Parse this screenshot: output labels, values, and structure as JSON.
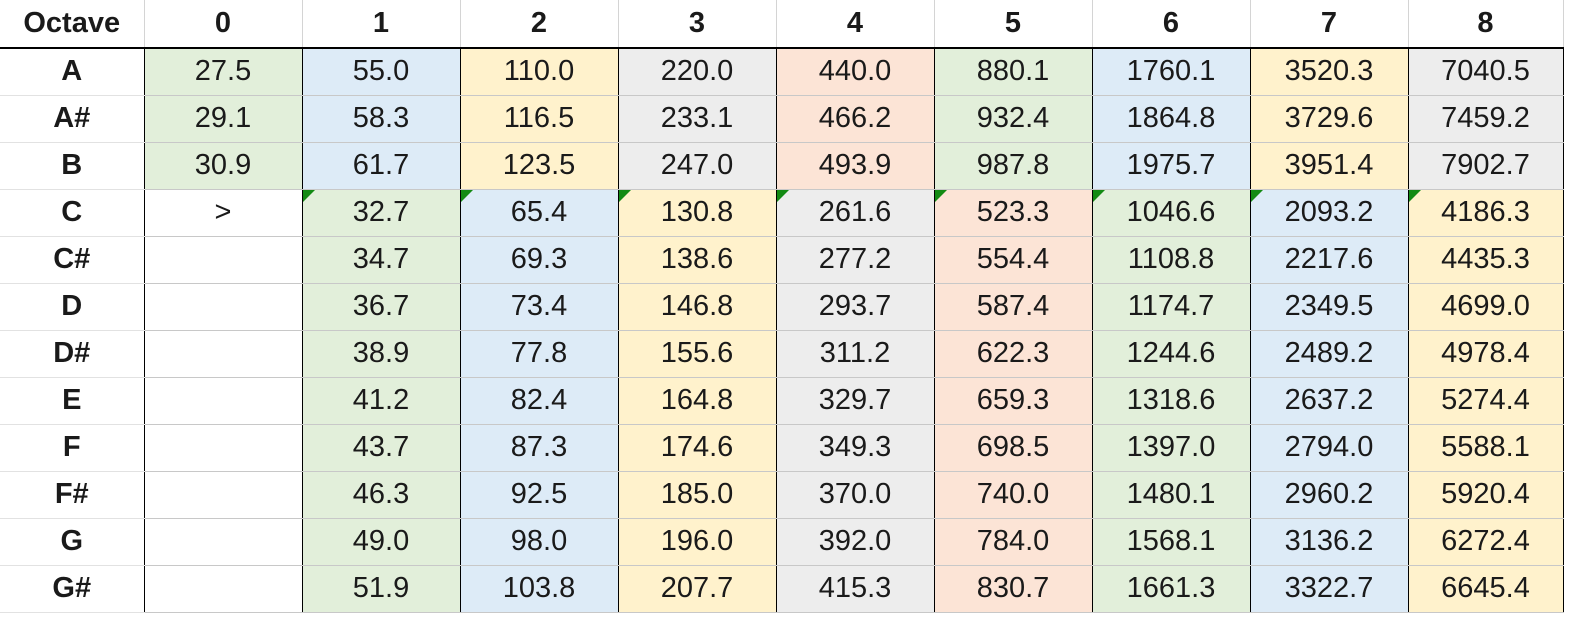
{
  "header_label": "Octave",
  "octaves": [
    "0",
    "1",
    "2",
    "3",
    "4",
    "5",
    "6",
    "7",
    "8"
  ],
  "palette": [
    "#e2efda",
    "#ddebf7",
    "#fff2cc",
    "#ededed",
    "#fce4d6"
  ],
  "marker_color": "#138a13",
  "rows": [
    {
      "note": "A",
      "cells": [
        "27.5",
        "55.0",
        "110.0",
        "220.0",
        "440.0",
        "880.1",
        "1760.1",
        "3520.3",
        "7040.5"
      ]
    },
    {
      "note": "A#",
      "cells": [
        "29.1",
        "58.3",
        "116.5",
        "233.1",
        "466.2",
        "932.4",
        "1864.8",
        "3729.6",
        "7459.2"
      ]
    },
    {
      "note": "B",
      "cells": [
        "30.9",
        "61.7",
        "123.5",
        "247.0",
        "493.9",
        "987.8",
        "1975.7",
        "3951.4",
        "7902.7"
      ]
    },
    {
      "note": "C",
      "cells": [
        ">",
        "32.7",
        "65.4",
        "130.8",
        "261.6",
        "523.3",
        "1046.6",
        "2093.2",
        "4186.3"
      ]
    },
    {
      "note": "C#",
      "cells": [
        "",
        "34.7",
        "69.3",
        "138.6",
        "277.2",
        "554.4",
        "1108.8",
        "2217.6",
        "4435.3"
      ]
    },
    {
      "note": "D",
      "cells": [
        "",
        "36.7",
        "73.4",
        "146.8",
        "293.7",
        "587.4",
        "1174.7",
        "2349.5",
        "4699.0"
      ]
    },
    {
      "note": "D#",
      "cells": [
        "",
        "38.9",
        "77.8",
        "155.6",
        "311.2",
        "622.3",
        "1244.6",
        "2489.2",
        "4978.4"
      ]
    },
    {
      "note": "E",
      "cells": [
        "",
        "41.2",
        "82.4",
        "164.8",
        "329.7",
        "659.3",
        "1318.6",
        "2637.2",
        "5274.4"
      ]
    },
    {
      "note": "F",
      "cells": [
        "",
        "43.7",
        "87.3",
        "174.6",
        "349.3",
        "698.5",
        "1397.0",
        "2794.0",
        "5588.1"
      ]
    },
    {
      "note": "F#",
      "cells": [
        "",
        "46.3",
        "92.5",
        "185.0",
        "370.0",
        "740.0",
        "1480.1",
        "2960.2",
        "5920.4"
      ]
    },
    {
      "note": "G",
      "cells": [
        "",
        "49.0",
        "98.0",
        "196.0",
        "392.0",
        "784.0",
        "1568.1",
        "3136.2",
        "6272.4"
      ]
    },
    {
      "note": "G#",
      "cells": [
        "",
        "51.9",
        "103.8",
        "207.7",
        "415.3",
        "830.7",
        "1661.3",
        "3322.7",
        "6645.4"
      ]
    }
  ]
}
